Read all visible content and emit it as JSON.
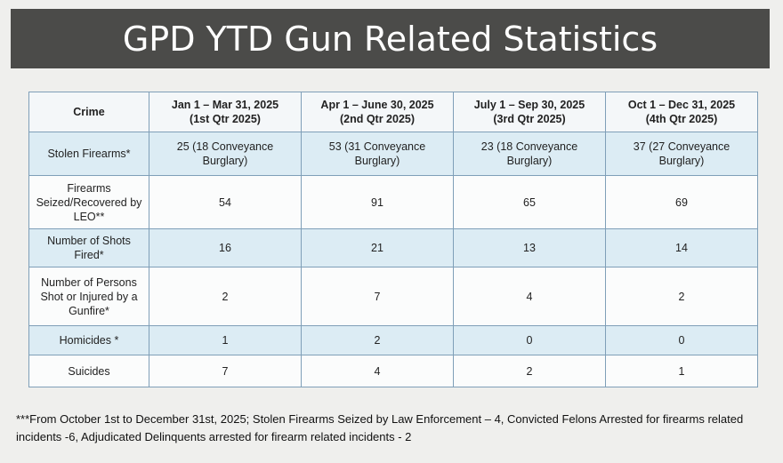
{
  "title": "GPD YTD Gun Related Statistics",
  "table": {
    "headers": [
      {
        "line1": "Crime",
        "line2": ""
      },
      {
        "line1": "Jan 1 – Mar 31, 2025",
        "line2": "(1st Qtr 2025)"
      },
      {
        "line1": "Apr 1 – June 30, 2025",
        "line2": "(2nd Qtr 2025)"
      },
      {
        "line1": "July 1 – Sep 30, 2025",
        "line2": "(3rd Qtr 2025)"
      },
      {
        "line1": "Oct 1 – Dec 31, 2025",
        "line2": "(4th Qtr 2025)"
      }
    ],
    "rows": [
      {
        "crime": "Stolen Firearms*",
        "values": [
          "25 (18 Conveyance Burglary)",
          "53 (31 Conveyance Burglary)",
          "23 (18 Conveyance Burglary)",
          "37 (27 Conveyance Burglary)"
        ]
      },
      {
        "crime": "Firearms Seized/Recovered by LEO**",
        "values": [
          "54",
          "91",
          "65",
          "69"
        ]
      },
      {
        "crime": "Number of Shots Fired*",
        "values": [
          "16",
          "21",
          "13",
          "14"
        ]
      },
      {
        "crime": "Number of Persons Shot or Injured by a Gunfire*",
        "values": [
          "2",
          "7",
          "4",
          "2"
        ]
      },
      {
        "crime": "Homicides *",
        "values": [
          "1",
          "2",
          "0",
          "0"
        ]
      },
      {
        "crime": "Suicides",
        "values": [
          "7",
          "4",
          "2",
          "1"
        ]
      }
    ]
  },
  "footnote": "***From October 1st to December 31st, 2025;  Stolen Firearms Seized by Law Enforcement – 4, Convicted Felons Arrested for firearms related incidents -6, Adjudicated Delinquents arrested for firearm related incidents - 2"
}
